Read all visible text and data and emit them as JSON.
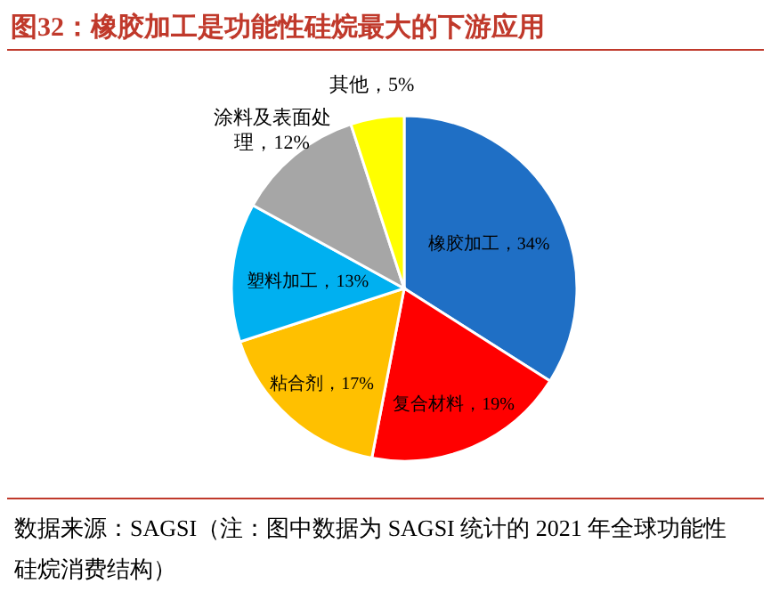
{
  "chart_data": {
    "type": "pie",
    "title": "图32：橡胶加工是功能性硅烷最大的下游应用",
    "categories": [
      "橡胶加工",
      "复合材料",
      "粘合剂",
      "塑料加工",
      "涂料及表面处理",
      "其他"
    ],
    "values": [
      34,
      19,
      17,
      13,
      12,
      5
    ],
    "value_labels": [
      "34%",
      "19%",
      "17%",
      "13%",
      "12%",
      "5%"
    ],
    "colors": [
      "#1f6fc5",
      "#ff0000",
      "#ffc000",
      "#00b0f0",
      "#a6a6a6",
      "#ffff00"
    ],
    "annotations": [
      "数据来源：SAGSI（注：图中数据为 SAGSI 统计的 2021 年全球功能性硅烷消费结构）"
    ]
  }
}
